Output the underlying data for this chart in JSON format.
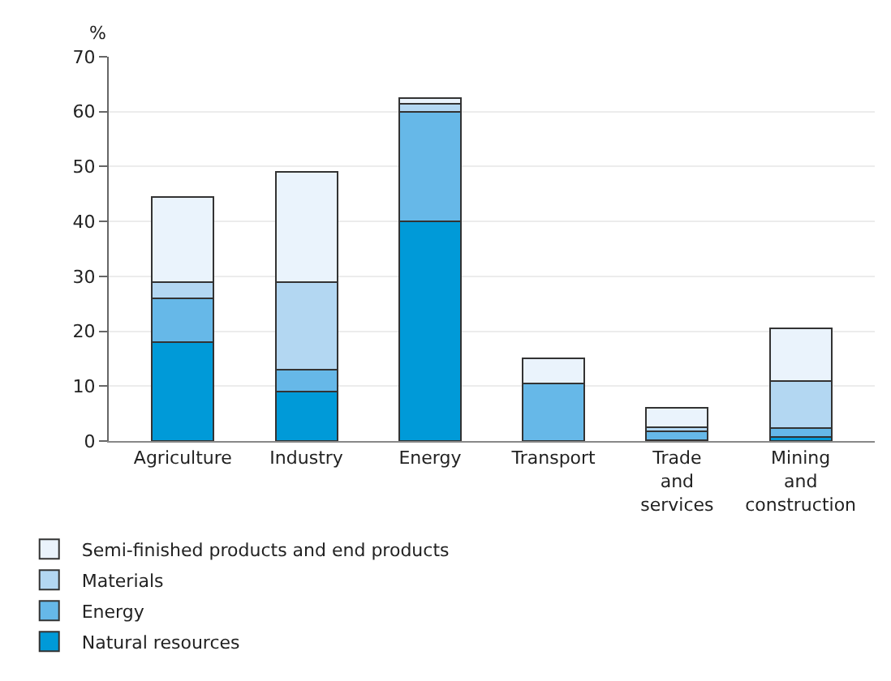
{
  "chart_data": {
    "type": "bar",
    "stacked": true,
    "ylabel": "%",
    "categories": [
      "Agriculture",
      "Industry",
      "Energy",
      "Transport",
      "Trade\nand\nservices",
      "Mining\nand\nconstruction"
    ],
    "series": [
      {
        "name": "Natural resources",
        "color": "#009ad8",
        "values": [
          18,
          9,
          40,
          0,
          0.2,
          0.8
        ]
      },
      {
        "name": "Energy",
        "color": "#66b8e8",
        "values": [
          8,
          4,
          20,
          10.5,
          1.5,
          1.5
        ]
      },
      {
        "name": "Materials",
        "color": "#b3d7f2",
        "values": [
          3,
          16,
          1.5,
          0,
          0.8,
          8.7
        ]
      },
      {
        "name": "Semi-finished products and end products",
        "color": "#eaf3fc",
        "values": [
          15.5,
          20,
          1,
          4.5,
          3.6,
          9.6
        ]
      }
    ],
    "ylim": [
      0,
      70
    ],
    "yticks": [
      0,
      10,
      20,
      30,
      40,
      50,
      60,
      70
    ],
    "grid": "y",
    "legend": "bottom left"
  }
}
